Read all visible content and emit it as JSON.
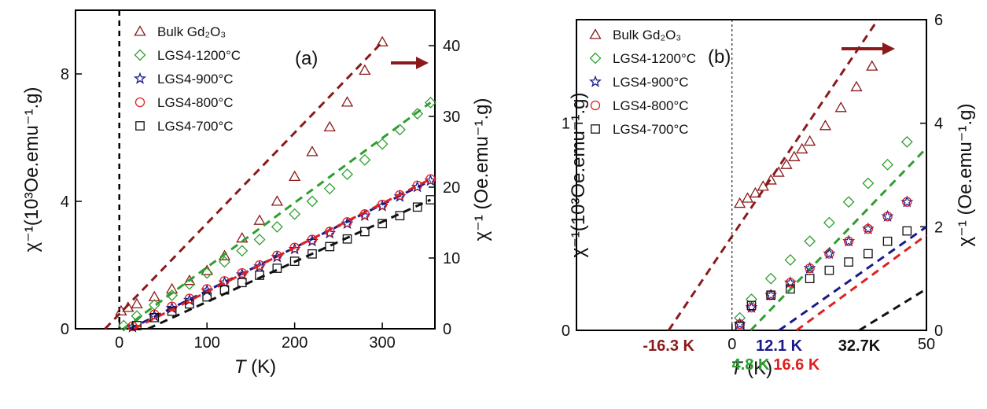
{
  "chart_data": [
    {
      "type": "scatter",
      "panel_label": "(a)",
      "xlabel": {
        "symbol": "T",
        "unit": " (K)"
      },
      "ylabel_left": "χ⁻¹(10³Oe.emu⁻¹.g)",
      "ylabel_right": "χ⁻¹ (Oe.emu⁻¹.g)",
      "xlim": [
        -50,
        360
      ],
      "ylim_left": [
        0,
        10
      ],
      "ylim_right": [
        0,
        45
      ],
      "x_ticks": [
        "0",
        "100",
        "200",
        "300"
      ],
      "y_ticks_left": [
        "0",
        "4",
        "8"
      ],
      "y_ticks_right": [
        "0",
        "10",
        "20",
        "30",
        "40"
      ],
      "x_tick_values": [
        0,
        100,
        200,
        300
      ],
      "y_tick_values_left": [
        0,
        4,
        8
      ],
      "y_tick_values_right": [
        0,
        10,
        20,
        30,
        40
      ],
      "series": [
        {
          "name": "Bulk Gd₂O₃",
          "marker": "triangle",
          "color": "#8b1a1a",
          "axis": "right",
          "x": [
            2,
            10,
            20,
            40,
            60,
            80,
            100,
            120,
            140,
            160,
            180,
            200,
            220,
            240,
            260,
            280,
            300
          ],
          "y": [
            2.5,
            3.0,
            3.5,
            4.5,
            5.6,
            6.8,
            8.2,
            10.3,
            12.8,
            15.3,
            18.0,
            21.5,
            25.0,
            28.5,
            32.0,
            36.5,
            40.5
          ],
          "fit": {
            "x0": -16.3,
            "y0": 0,
            "x1": 300,
            "y1": 40.5
          }
        },
        {
          "name": "LGS4-1200°C",
          "marker": "diamond",
          "color": "#2e9e2e",
          "axis": "left",
          "x": [
            5,
            20,
            40,
            60,
            80,
            100,
            120,
            140,
            160,
            180,
            200,
            220,
            240,
            260,
            280,
            300,
            320,
            340,
            355
          ],
          "y": [
            0.1,
            0.4,
            0.75,
            1.05,
            1.4,
            1.75,
            2.1,
            2.45,
            2.8,
            3.2,
            3.6,
            4.0,
            4.4,
            4.85,
            5.3,
            5.8,
            6.25,
            6.75,
            7.1
          ],
          "fit": {
            "x0": 4.8,
            "y0": 0,
            "x1": 355,
            "y1": 7.1
          }
        },
        {
          "name": "LGS4-900°C",
          "marker": "star",
          "color": "#1a1a8b",
          "axis": "left",
          "x": [
            15,
            40,
            60,
            80,
            100,
            120,
            140,
            160,
            180,
            200,
            220,
            240,
            260,
            280,
            300,
            320,
            340,
            355
          ],
          "y": [
            0.05,
            0.4,
            0.65,
            0.9,
            1.2,
            1.45,
            1.7,
            1.95,
            2.25,
            2.5,
            2.75,
            3.0,
            3.3,
            3.55,
            3.85,
            4.15,
            4.45,
            4.65
          ],
          "fit": {
            "x0": 12.1,
            "y0": 0,
            "x1": 355,
            "y1": 4.65
          }
        },
        {
          "name": "LGS4-800°C",
          "marker": "circle",
          "color": "#e02020",
          "axis": "left",
          "x": [
            15,
            40,
            60,
            80,
            100,
            120,
            140,
            160,
            180,
            200,
            220,
            240,
            260,
            280,
            300,
            320,
            340,
            355
          ],
          "y": [
            0.08,
            0.45,
            0.7,
            0.95,
            1.25,
            1.5,
            1.75,
            2.0,
            2.3,
            2.55,
            2.8,
            3.05,
            3.35,
            3.6,
            3.9,
            4.2,
            4.5,
            4.7
          ],
          "fit": {
            "x0": 16.6,
            "y0": 0,
            "x1": 355,
            "y1": 4.7
          }
        },
        {
          "name": "LGS4-700°C",
          "marker": "square",
          "color": "#111111",
          "axis": "left",
          "x": [
            20,
            40,
            60,
            80,
            100,
            120,
            140,
            160,
            180,
            200,
            220,
            240,
            260,
            280,
            300,
            320,
            340,
            355
          ],
          "y": [
            0.1,
            0.35,
            0.55,
            0.78,
            1.0,
            1.22,
            1.45,
            1.68,
            1.9,
            2.12,
            2.35,
            2.58,
            2.82,
            3.05,
            3.3,
            3.55,
            3.82,
            4.05
          ],
          "fit": {
            "x0": 32.7,
            "y0": 0,
            "x1": 355,
            "y1": 4.05
          }
        }
      ]
    },
    {
      "type": "scatter",
      "panel_label": "(b)",
      "xlabel": {
        "symbol": "T",
        "unit": " (K)"
      },
      "ylabel_left": "χ⁻¹(10³Oe.emu⁻¹.g)",
      "ylabel_right": "χ⁻¹ (Oe.emu⁻¹.g)",
      "xlim": [
        -40,
        50
      ],
      "ylim_left": [
        0,
        1.5
      ],
      "ylim_right": [
        0,
        6
      ],
      "x_ticks": [
        "0",
        "50"
      ],
      "y_ticks_left": [
        "0",
        "1"
      ],
      "y_ticks_right": [
        "0",
        "2",
        "4",
        "6"
      ],
      "x_tick_values": [
        0,
        50
      ],
      "y_tick_values_left": [
        0,
        1
      ],
      "y_tick_values_right": [
        0,
        2,
        4,
        6
      ],
      "transition_labels": [
        {
          "text": "-16.3 K",
          "x": -16.3,
          "color": "#8b1a1a",
          "row": 1
        },
        {
          "text": "4.8 K",
          "x": 4.8,
          "color": "#2e9e2e",
          "row": 2
        },
        {
          "text": "12.1 K",
          "x": 12.1,
          "color": "#1a1a8b",
          "row": 1
        },
        {
          "text": "16.6 K",
          "x": 16.6,
          "color": "#e02020",
          "row": 2
        },
        {
          "text": "32.7K",
          "x": 32.7,
          "color": "#111111",
          "row": 1
        }
      ],
      "series": [
        {
          "name": "Bulk Gd₂O₃",
          "marker": "triangle",
          "color": "#8b1a1a",
          "axis": "right",
          "x": [
            2,
            4,
            6,
            8,
            10,
            12,
            14,
            16,
            18,
            20,
            24,
            28,
            32,
            36
          ],
          "y": [
            2.45,
            2.55,
            2.65,
            2.78,
            2.9,
            3.05,
            3.2,
            3.35,
            3.5,
            3.65,
            3.95,
            4.3,
            4.7,
            5.1
          ],
          "fit": {
            "x0": -16.3,
            "y0": 0,
            "x1": 37.5,
            "y1": 6
          }
        },
        {
          "name": "LGS4-1200°C",
          "marker": "diamond",
          "color": "#2e9e2e",
          "axis": "left",
          "x": [
            2,
            5,
            10,
            15,
            20,
            25,
            30,
            35,
            40,
            45
          ],
          "y": [
            0.06,
            0.15,
            0.25,
            0.34,
            0.43,
            0.52,
            0.62,
            0.71,
            0.8,
            0.91
          ],
          "fit": {
            "x0": 4.8,
            "y0": 0,
            "x1": 50,
            "y1": 0.88
          }
        },
        {
          "name": "LGS4-900°C",
          "marker": "star",
          "color": "#1a1a8b",
          "axis": "left",
          "x": [
            2,
            5,
            10,
            15,
            20,
            25,
            30,
            35,
            40,
            45
          ],
          "y": [
            0.03,
            0.11,
            0.17,
            0.23,
            0.3,
            0.37,
            0.43,
            0.49,
            0.55,
            0.62
          ],
          "fit": {
            "x0": 12.1,
            "y0": 0,
            "x1": 50,
            "y1": 0.5
          }
        },
        {
          "name": "LGS4-800°C",
          "marker": "circle",
          "color": "#e02020",
          "axis": "left",
          "x": [
            2,
            5,
            10,
            15,
            20,
            25,
            30,
            35,
            40,
            45
          ],
          "y": [
            0.03,
            0.11,
            0.17,
            0.23,
            0.3,
            0.37,
            0.43,
            0.49,
            0.55,
            0.62
          ],
          "fit": {
            "x0": 16.6,
            "y0": 0,
            "x1": 50,
            "y1": 0.46
          }
        },
        {
          "name": "LGS4-700°C",
          "marker": "square",
          "color": "#111111",
          "axis": "left",
          "x": [
            2,
            5,
            10,
            15,
            20,
            25,
            30,
            35,
            40,
            45
          ],
          "y": [
            0.02,
            0.12,
            0.17,
            0.2,
            0.25,
            0.29,
            0.33,
            0.37,
            0.43,
            0.48
          ],
          "fit": {
            "x0": 32.7,
            "y0": 0,
            "x1": 50,
            "y1": 0.2
          }
        }
      ]
    }
  ]
}
